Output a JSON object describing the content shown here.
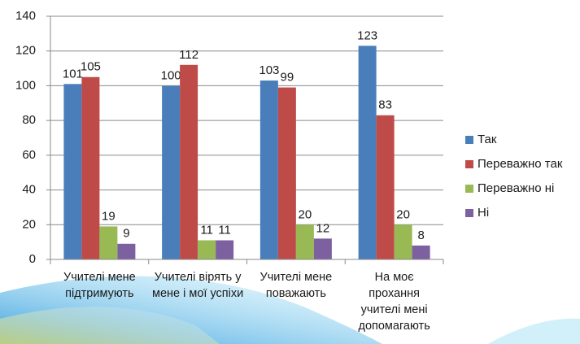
{
  "chart_data": {
    "type": "bar",
    "categories": [
      "Учителі мене підтримують",
      "Учителі вірять у мене і мої успіхи",
      "Учителі мене поважають",
      "На моє прохання учителі мені допомагають"
    ],
    "series": [
      {
        "name": "Так",
        "color": "#4a7ebb",
        "values": [
          101,
          100,
          103,
          123
        ]
      },
      {
        "name": "Переважно так",
        "color": "#be4b48",
        "values": [
          105,
          112,
          99,
          83
        ]
      },
      {
        "name": "Переважно ні",
        "color": "#98b954",
        "values": [
          19,
          11,
          20,
          20
        ]
      },
      {
        "name": "Ні",
        "color": "#7d60a0",
        "values": [
          9,
          11,
          12,
          8
        ]
      }
    ],
    "ylim": [
      0,
      140
    ],
    "yticks": [
      0,
      20,
      40,
      60,
      80,
      100,
      120,
      140
    ],
    "grid": true,
    "legend": "right"
  }
}
